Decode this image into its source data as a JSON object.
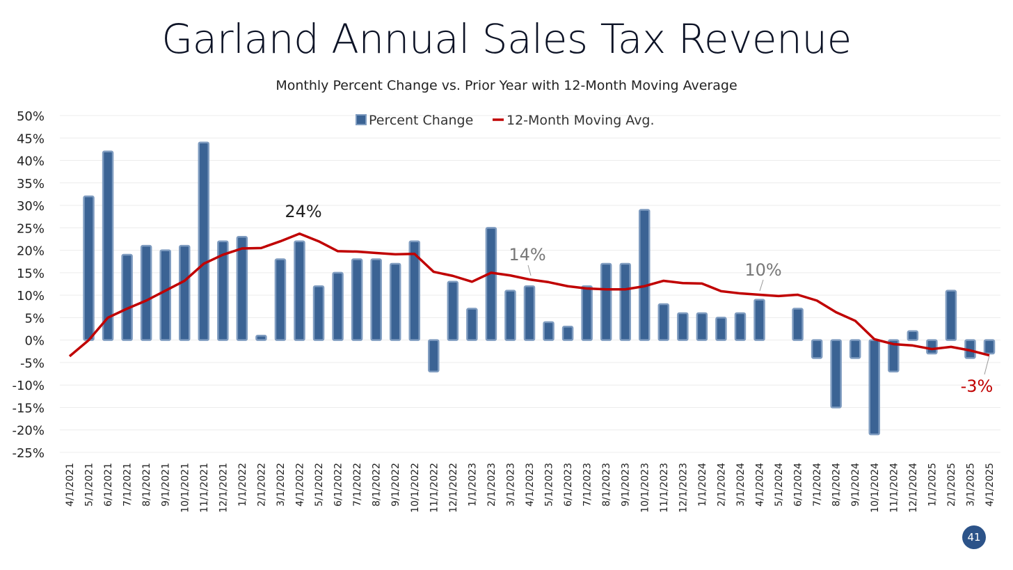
{
  "page_number": "41",
  "chart_data": {
    "type": "bar",
    "title": "Garland Annual Sales Tax Revenue",
    "subtitle": "Monthly Percent Change vs. Prior Year with 12-Month Moving Average",
    "xlabel": "",
    "ylabel": "",
    "ylim": [
      -25,
      50
    ],
    "ytick_step": 5,
    "grid": true,
    "legend_position": "top-center",
    "categories": [
      "4/1/2021",
      "5/1/2021",
      "6/1/2021",
      "7/1/2021",
      "8/1/2021",
      "9/1/2021",
      "10/1/2021",
      "11/1/2021",
      "12/1/2021",
      "1/1/2022",
      "2/1/2022",
      "3/1/2022",
      "4/1/2022",
      "5/1/2022",
      "6/1/2022",
      "7/1/2022",
      "8/1/2022",
      "9/1/2022",
      "10/1/2022",
      "11/1/2022",
      "12/1/2022",
      "1/1/2023",
      "2/1/2023",
      "3/1/2023",
      "4/1/2023",
      "5/1/2023",
      "6/1/2023",
      "7/1/2023",
      "8/1/2023",
      "9/1/2023",
      "10/1/2023",
      "11/1/2023",
      "12/1/2023",
      "1/1/2024",
      "2/1/2024",
      "3/1/2024",
      "4/1/2024",
      "5/1/2024",
      "6/1/2024",
      "7/1/2024",
      "8/1/2024",
      "9/1/2024",
      "10/1/2024",
      "11/1/2024",
      "12/1/2024",
      "1/1/2025",
      "2/1/2025",
      "3/1/2025",
      "4/1/2025"
    ],
    "series": [
      {
        "name": "Percent Change",
        "type": "bar",
        "color": "#3b6394",
        "values": [
          null,
          32,
          42,
          19,
          21,
          20,
          21,
          44,
          22,
          23,
          1,
          18,
          22,
          12,
          15,
          18,
          18,
          17,
          22,
          -7,
          13,
          7,
          25,
          11,
          12,
          4,
          3,
          12,
          17,
          17,
          29,
          8,
          6,
          6,
          5,
          6,
          9,
          null,
          7,
          -4,
          -15,
          -4,
          -21,
          -7,
          2,
          -3,
          11,
          -4,
          -3
        ]
      },
      {
        "name": "12-Month Moving Avg.",
        "type": "line",
        "color": "#c00000",
        "values": [
          -3.6,
          0,
          5,
          7,
          8.8,
          11,
          13.2,
          17,
          19,
          20.4,
          20.5,
          22,
          23.7,
          22,
          19.8,
          19.7,
          19.4,
          19.1,
          19.2,
          15.2,
          14.3,
          13,
          15,
          14.4,
          13.5,
          12.9,
          12,
          11.5,
          11.3,
          11.3,
          12,
          13.2,
          12.7,
          12.6,
          10.9,
          10.4,
          10.1,
          9.8,
          10.1,
          8.8,
          6.2,
          4.3,
          0.2,
          -0.9,
          -1.2,
          -2,
          -1.5,
          -2.3,
          -3.4
        ]
      }
    ],
    "annotations": [
      {
        "text": "24%",
        "category": "4/1/2022",
        "color": "#222222"
      },
      {
        "text": "14%",
        "category": "4/1/2023",
        "color": "#777777"
      },
      {
        "text": "10%",
        "category": "4/1/2024",
        "color": "#777777"
      },
      {
        "text": "-3%",
        "category": "4/1/2025",
        "color": "#c00000"
      }
    ]
  }
}
